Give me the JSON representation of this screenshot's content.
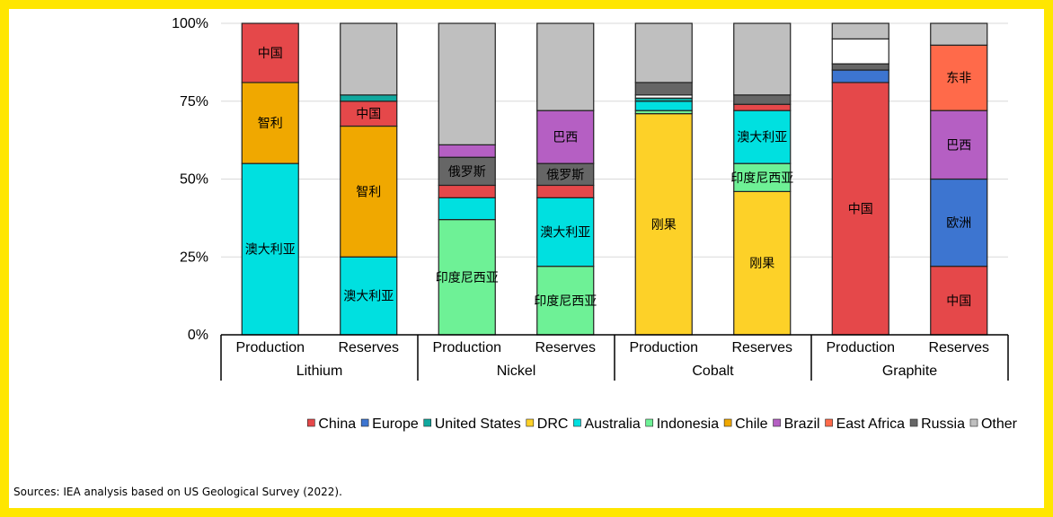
{
  "chart_data": {
    "type": "bar",
    "stacked": true,
    "percent": true,
    "ylim": [
      0,
      100
    ],
    "y_ticks": [
      0,
      25,
      50,
      75,
      100
    ],
    "y_tick_labels": [
      "0%",
      "25%",
      "50%",
      "75%",
      "100%"
    ],
    "groups": [
      "Lithium",
      "Nickel",
      "Cobalt",
      "Graphite"
    ],
    "categories": [
      "Production",
      "Reserves"
    ],
    "series_names": [
      "China",
      "Europe",
      "United States",
      "DRC",
      "Australia",
      "Indonesia",
      "Chile",
      "Brazil",
      "East Africa",
      "Russia",
      "Other"
    ],
    "colors": {
      "China": "#E5484A",
      "Europe": "#3D75D0",
      "United States": "#10A89E",
      "DRC": "#FDD128",
      "Australia": "#00E0E0",
      "Indonesia": "#6EF196",
      "Chile": "#F0A800",
      "Brazil": "#B55FC3",
      "East Africa": "#FF6A4A",
      "Russia": "#666666",
      "Other": "#BFBFBF",
      "Blank": "#FFFFFF"
    },
    "bars": [
      {
        "group": "Lithium",
        "category": "Production",
        "segments": [
          {
            "name": "Australia",
            "value": 55,
            "label": "澳大利亚"
          },
          {
            "name": "Chile",
            "value": 26,
            "label": "智利"
          },
          {
            "name": "China",
            "value": 19,
            "label": "中国"
          }
        ]
      },
      {
        "group": "Lithium",
        "category": "Reserves",
        "segments": [
          {
            "name": "Australia",
            "value": 25,
            "label": "澳大利亚"
          },
          {
            "name": "Chile",
            "value": 42,
            "label": "智利"
          },
          {
            "name": "China",
            "value": 8,
            "label": "中国"
          },
          {
            "name": "United States",
            "value": 2,
            "label": ""
          },
          {
            "name": "Other",
            "value": 23,
            "label": ""
          }
        ]
      },
      {
        "group": "Nickel",
        "category": "Production",
        "segments": [
          {
            "name": "Indonesia",
            "value": 37,
            "label": "印度尼西亚"
          },
          {
            "name": "Australia",
            "value": 7,
            "label": ""
          },
          {
            "name": "China",
            "value": 4,
            "label": ""
          },
          {
            "name": "Russia",
            "value": 9,
            "label": "俄罗斯"
          },
          {
            "name": "Brazil",
            "value": 4,
            "label": ""
          },
          {
            "name": "Other",
            "value": 39,
            "label": ""
          }
        ]
      },
      {
        "group": "Nickel",
        "category": "Reserves",
        "segments": [
          {
            "name": "Indonesia",
            "value": 22,
            "label": "印度尼西亚"
          },
          {
            "name": "Australia",
            "value": 22,
            "label": "澳大利亚"
          },
          {
            "name": "China",
            "value": 4,
            "label": ""
          },
          {
            "name": "Russia",
            "value": 7,
            "label": "俄罗斯"
          },
          {
            "name": "Brazil",
            "value": 17,
            "label": "巴西"
          },
          {
            "name": "Other",
            "value": 28,
            "label": ""
          }
        ]
      },
      {
        "group": "Cobalt",
        "category": "Production",
        "segments": [
          {
            "name": "DRC",
            "value": 71,
            "label": "刚果"
          },
          {
            "name": "Indonesia",
            "value": 1,
            "label": ""
          },
          {
            "name": "Australia",
            "value": 3,
            "label": ""
          },
          {
            "name": "United States",
            "value": 1,
            "label": ""
          },
          {
            "name": "Blank",
            "value": 1,
            "label": ""
          },
          {
            "name": "Russia",
            "value": 4,
            "label": ""
          },
          {
            "name": "Other",
            "value": 19,
            "label": ""
          }
        ]
      },
      {
        "group": "Cobalt",
        "category": "Reserves",
        "segments": [
          {
            "name": "DRC",
            "value": 46,
            "label": "刚果"
          },
          {
            "name": "Indonesia",
            "value": 9,
            "label": "印度尼西亚"
          },
          {
            "name": "Australia",
            "value": 17,
            "label": "澳大利亚"
          },
          {
            "name": "China",
            "value": 2,
            "label": ""
          },
          {
            "name": "Russia",
            "value": 3,
            "label": ""
          },
          {
            "name": "Other",
            "value": 23,
            "label": ""
          }
        ]
      },
      {
        "group": "Graphite",
        "category": "Production",
        "segments": [
          {
            "name": "China",
            "value": 81,
            "label": "中国"
          },
          {
            "name": "Europe",
            "value": 4,
            "label": ""
          },
          {
            "name": "Russia",
            "value": 2,
            "label": ""
          },
          {
            "name": "Blank",
            "value": 8,
            "label": ""
          },
          {
            "name": "Other",
            "value": 5,
            "label": ""
          }
        ]
      },
      {
        "group": "Graphite",
        "category": "Reserves",
        "segments": [
          {
            "name": "China",
            "value": 22,
            "label": "中国"
          },
          {
            "name": "Europe",
            "value": 28,
            "label": "欧洲"
          },
          {
            "name": "Brazil",
            "value": 22,
            "label": "巴西"
          },
          {
            "name": "East Africa",
            "value": 21,
            "label": "东非"
          },
          {
            "name": "Other",
            "value": 7,
            "label": ""
          }
        ]
      }
    ],
    "legend_position": "bottom"
  },
  "footer": {
    "source": "Sources: IEA analysis based on US Geological Survey (2022)."
  }
}
